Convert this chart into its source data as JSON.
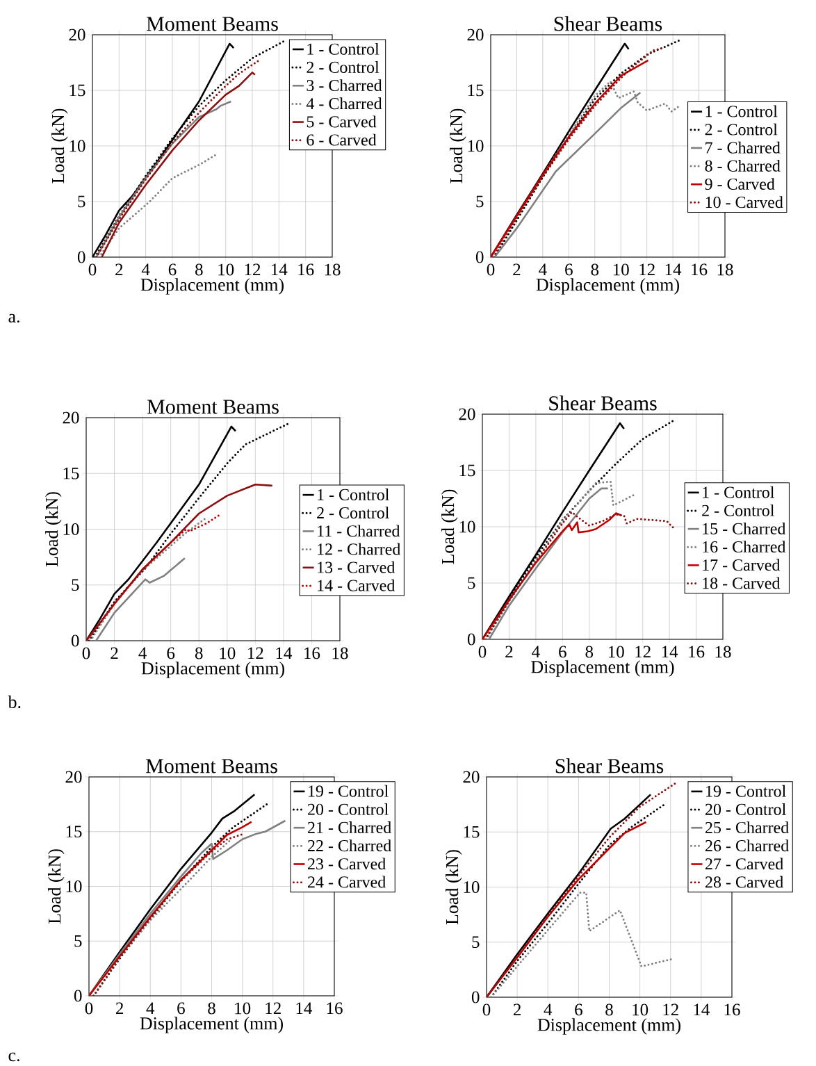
{
  "chart_data": [
    {
      "type": "line",
      "title": "Moment Beams",
      "xlabel": "Displacement (mm)",
      "ylabel": "Load (kN)",
      "xlim": [
        0,
        18
      ],
      "ylim": [
        0,
        20
      ],
      "xticks": [
        0,
        2,
        4,
        6,
        8,
        10,
        12,
        14,
        16,
        18
      ],
      "yticks": [
        0,
        5,
        10,
        15,
        20
      ],
      "grid": true,
      "legend": "top right",
      "annotations": [
        "a."
      ],
      "series": [
        {
          "name": "1 - Control",
          "color": "#000000",
          "line_style": "solid",
          "x": [
            0,
            1,
            2,
            3,
            5,
            8,
            10.3,
            10.6
          ],
          "values": [
            0,
            2,
            4.2,
            5.5,
            8.8,
            14,
            19.2,
            18.8
          ]
        },
        {
          "name": "2 - Control",
          "color": "#000000",
          "line_style": "dotted",
          "x": [
            0.2,
            2,
            4,
            6,
            8,
            10,
            12,
            14.5
          ],
          "values": [
            0,
            3.7,
            7.3,
            10.7,
            13.6,
            15.9,
            17.9,
            19.5
          ]
        },
        {
          "name": "3 - Charred",
          "color": "#808080",
          "line_style": "solid",
          "x": [
            0.3,
            2,
            4,
            6,
            8,
            9.3,
            9.6,
            10.4
          ],
          "values": [
            0,
            3.6,
            7.1,
            10.2,
            12.6,
            13.3,
            13.6,
            14
          ]
        },
        {
          "name": "4 - Charred",
          "color": "#808080",
          "line_style": "dotted",
          "x": [
            0.5,
            2,
            4.3,
            6,
            8,
            9.4
          ],
          "values": [
            0,
            2.6,
            5,
            7.1,
            8.3,
            9.3
          ]
        },
        {
          "name": "5 - Carved",
          "color": "#8b1010",
          "line_style": "solid",
          "x": [
            0.7,
            2,
            4,
            6,
            8,
            10,
            11,
            12,
            12.2
          ],
          "values": [
            0,
            3.1,
            6.5,
            9.6,
            12.3,
            14.6,
            15.4,
            16.6,
            16.4
          ]
        },
        {
          "name": "6 - Carved",
          "color": "#8b1010",
          "line_style": "dotted",
          "x": [
            0.3,
            2,
            4,
            6,
            8,
            10,
            11,
            12.5
          ],
          "values": [
            0,
            3.4,
            7,
            10.3,
            13,
            15.4,
            16.5,
            17.7
          ]
        }
      ]
    },
    {
      "type": "line",
      "title": "Shear Beams",
      "xlabel": "Displacement (mm)",
      "ylabel": "Load (kN)",
      "xlim": [
        0,
        18
      ],
      "ylim": [
        0,
        20
      ],
      "xticks": [
        0,
        2,
        4,
        6,
        8,
        10,
        12,
        14,
        16,
        18
      ],
      "yticks": [
        0,
        5,
        10,
        15,
        20
      ],
      "grid": true,
      "legend": "right",
      "series": [
        {
          "name": "1 - Control",
          "color": "#000000",
          "line_style": "solid",
          "x": [
            0,
            2,
            4,
            6,
            8,
            10.3,
            10.6
          ],
          "values": [
            0,
            3.8,
            7.5,
            11.3,
            15,
            19.2,
            18.7
          ]
        },
        {
          "name": "2 - Control",
          "color": "#000000",
          "line_style": "dotted",
          "x": [
            0.3,
            2,
            4,
            6,
            8,
            10,
            12,
            14.5
          ],
          "values": [
            0,
            3.3,
            7.2,
            10.8,
            14.2,
            16.5,
            18.2,
            19.5
          ]
        },
        {
          "name": "7 - Charred",
          "color": "#808080",
          "line_style": "solid",
          "x": [
            0.3,
            2,
            5,
            8,
            10,
            11.5
          ],
          "values": [
            0,
            2.6,
            7.7,
            11.1,
            13.4,
            14.8
          ]
        },
        {
          "name": "8 - Charred",
          "color": "#808080",
          "line_style": "dotted",
          "x": [
            0,
            2,
            4,
            6,
            8,
            9.2,
            9.8,
            11,
            11.3,
            12,
            13.4,
            13.9,
            14.5
          ],
          "values": [
            0,
            3.7,
            7.4,
            11,
            14.5,
            15.8,
            14.3,
            14.9,
            13.9,
            13.2,
            13.8,
            13.1,
            13.6
          ]
        },
        {
          "name": "9 - Carved",
          "color": "#c00000",
          "line_style": "solid",
          "x": [
            0,
            2,
            4,
            6,
            8,
            10,
            12.1
          ],
          "values": [
            0,
            3.7,
            7.4,
            10.8,
            13.8,
            16.3,
            17.7
          ]
        },
        {
          "name": "10 - Carved",
          "color": "#8b1010",
          "line_style": "dotted",
          "x": [
            0.2,
            2,
            4,
            6,
            8,
            10,
            11,
            12.5,
            13.2
          ],
          "values": [
            0,
            3.5,
            7.2,
            10.6,
            13.6,
            16.1,
            17.2,
            18.6,
            18.8
          ]
        }
      ]
    },
    {
      "type": "line",
      "title": "Moment Beams",
      "xlabel": "Displacement (mm)",
      "ylabel": "Load (kN)",
      "xlim": [
        0,
        18
      ],
      "ylim": [
        0,
        20
      ],
      "xticks": [
        0,
        2,
        4,
        6,
        8,
        10,
        12,
        14,
        16,
        18
      ],
      "yticks": [
        0,
        5,
        10,
        15,
        20
      ],
      "grid": true,
      "legend": "right",
      "annotations": [
        "b."
      ],
      "series": [
        {
          "name": "1 - Control",
          "color": "#000000",
          "line_style": "solid",
          "x": [
            0,
            1,
            2,
            3,
            5,
            8,
            10.3,
            10.6
          ],
          "values": [
            0,
            2,
            4.2,
            5.5,
            8.8,
            14,
            19.2,
            18.8
          ]
        },
        {
          "name": "2 - Control",
          "color": "#000000",
          "line_style": "dotted",
          "x": [
            0.2,
            2,
            4.2,
            6,
            8,
            10,
            11.3,
            14.4
          ],
          "values": [
            0,
            3.5,
            6.5,
            9.6,
            12.8,
            15.9,
            17.6,
            19.5
          ]
        },
        {
          "name": "11 - Charred",
          "color": "#808080",
          "line_style": "solid",
          "x": [
            0.7,
            2,
            4.2,
            4.5,
            5.5,
            7
          ],
          "values": [
            0,
            2.5,
            5.5,
            5.2,
            5.8,
            7.4
          ]
        },
        {
          "name": "12 - Charred",
          "color": "#808080",
          "line_style": "dotted",
          "x": [
            0.3,
            2,
            4,
            6,
            7,
            8.6
          ],
          "values": [
            0,
            3.3,
            6.3,
            8.5,
            9.6,
            11.1
          ]
        },
        {
          "name": "13 - Carved",
          "color": "#8b1010",
          "line_style": "solid",
          "x": [
            0,
            2,
            4,
            6,
            8,
            10,
            12,
            13.2
          ],
          "values": [
            0,
            3.3,
            6.4,
            8.8,
            11.4,
            13,
            14,
            13.9
          ]
        },
        {
          "name": "14 - Carved",
          "color": "#c00000",
          "line_style": "dotted",
          "x": [
            0,
            2,
            4,
            6,
            7.1,
            7.3,
            8.5,
            9.5
          ],
          "values": [
            0,
            3.3,
            6.4,
            8.8,
            10,
            9.8,
            10.5,
            11.3
          ]
        }
      ]
    },
    {
      "type": "line",
      "title": "Shear Beams",
      "xlabel": "Displacement (mm)",
      "ylabel": "Load (kN)",
      "xlim": [
        0,
        18
      ],
      "ylim": [
        0,
        20
      ],
      "xticks": [
        0,
        2,
        4,
        6,
        8,
        10,
        12,
        14,
        16,
        18
      ],
      "yticks": [
        0,
        5,
        10,
        15,
        20
      ],
      "grid": true,
      "legend": "right",
      "series": [
        {
          "name": "1 - Control",
          "color": "#000000",
          "line_style": "solid",
          "x": [
            0,
            2,
            4,
            6,
            8,
            10.3,
            10.6
          ],
          "values": [
            0,
            3.8,
            7.5,
            11.3,
            15,
            19.2,
            18.7
          ]
        },
        {
          "name": "2 - Control",
          "color": "#000000",
          "line_style": "dotted",
          "x": [
            0.3,
            2,
            4,
            6,
            8,
            10,
            12,
            14.4
          ],
          "values": [
            0,
            3.6,
            7.3,
            10.6,
            13.2,
            15.6,
            17.8,
            19.5
          ]
        },
        {
          "name": "15 - Charred",
          "color": "#808080",
          "line_style": "solid",
          "x": [
            0.5,
            2,
            4,
            6,
            8,
            8.9,
            9.4
          ],
          "values": [
            0,
            3,
            6.3,
            9.5,
            12.5,
            13.4,
            13.4
          ]
        },
        {
          "name": "16 - Charred",
          "color": "#808080",
          "line_style": "dotted",
          "x": [
            0.3,
            2,
            4,
            6,
            8.5,
            9.6,
            9.8,
            11.3
          ],
          "values": [
            0,
            3.4,
            7,
            10.5,
            13.9,
            14,
            11.9,
            12.8
          ]
        },
        {
          "name": "17 - Carved",
          "color": "#c00000",
          "line_style": "solid",
          "x": [
            0,
            2,
            4,
            6,
            6.5,
            6.7,
            7.1,
            7.2,
            7.9,
            8.5,
            9.5,
            10,
            10.4
          ],
          "values": [
            0,
            3.5,
            6.8,
            9.6,
            10.2,
            9.7,
            10.4,
            9.5,
            9.6,
            9.8,
            10.6,
            11.2,
            11
          ]
        },
        {
          "name": "18 - Carved",
          "color": "#8b1010",
          "line_style": "dotted",
          "x": [
            0.2,
            2,
            4,
            6,
            6.7,
            7.1,
            8,
            9,
            10,
            10.6,
            10.8,
            11.6,
            13.8,
            14.3
          ],
          "values": [
            0,
            3.4,
            6.9,
            10.3,
            11.3,
            10.9,
            10.1,
            10.5,
            11.1,
            11,
            10.3,
            10.7,
            10.5,
            9.9
          ]
        }
      ]
    },
    {
      "type": "line",
      "title": "Moment Beams",
      "xlabel": "Displacement (mm)",
      "ylabel": "Load (kN)",
      "xlim": [
        0,
        16
      ],
      "ylim": [
        0,
        20
      ],
      "xticks": [
        0,
        2,
        4,
        6,
        8,
        10,
        12,
        14,
        16
      ],
      "yticks": [
        0,
        5,
        10,
        15,
        20
      ],
      "grid": true,
      "legend": "top right",
      "annotations": [
        "c."
      ],
      "series": [
        {
          "name": "19 - Control",
          "color": "#000000",
          "line_style": "solid",
          "x": [
            0,
            2,
            4,
            6,
            8,
            8.7,
            9.5,
            10.8
          ],
          "values": [
            0,
            4,
            7.9,
            11.6,
            14.9,
            16.2,
            16.9,
            18.4
          ]
        },
        {
          "name": "20 - Control",
          "color": "#000000",
          "line_style": "dotted",
          "x": [
            0.3,
            2,
            4,
            6,
            8,
            9.4,
            11.7
          ],
          "values": [
            0,
            3.4,
            7,
            10.5,
            13.6,
            15.4,
            17.6
          ]
        },
        {
          "name": "21 - Charred",
          "color": "#808080",
          "line_style": "solid",
          "x": [
            0,
            2,
            4,
            6,
            7.3,
            8,
            8.1,
            9,
            10,
            10.9,
            11.5,
            12.8
          ],
          "values": [
            0,
            3.8,
            7.5,
            10.9,
            13,
            13.9,
            12.5,
            13.3,
            14.3,
            14.8,
            15,
            16
          ]
        },
        {
          "name": "22 - Charred",
          "color": "#808080",
          "line_style": "dotted",
          "x": [
            0.3,
            2,
            4,
            6.3,
            8,
            9.2
          ],
          "values": [
            0,
            3.5,
            6.9,
            10.2,
            12.7,
            14.2
          ]
        },
        {
          "name": "23 - Carved",
          "color": "#c00000",
          "line_style": "solid",
          "x": [
            0,
            2,
            4,
            6,
            8,
            9,
            10,
            10.6
          ],
          "values": [
            0,
            3.6,
            7.2,
            10.6,
            13.3,
            14.7,
            15.4,
            15.9
          ]
        },
        {
          "name": "24 - Carved",
          "color": "#8b1010",
          "line_style": "dotted",
          "x": [
            0.3,
            2,
            4,
            6,
            8,
            9,
            10.1
          ],
          "values": [
            0,
            3.5,
            7.1,
            10.5,
            13.2,
            14.3,
            14.8
          ]
        }
      ]
    },
    {
      "type": "line",
      "title": "Shear Beams",
      "xlabel": "Displacement (mm)",
      "ylabel": "Load (kN)",
      "xlim": [
        0,
        16
      ],
      "ylim": [
        0,
        20
      ],
      "xticks": [
        0,
        2,
        4,
        6,
        8,
        10,
        12,
        14,
        16
      ],
      "yticks": [
        0,
        5,
        10,
        15,
        20
      ],
      "grid": true,
      "legend": "top right",
      "series": [
        {
          "name": "19 - Control",
          "color": "#000000",
          "line_style": "solid",
          "x": [
            0,
            2,
            4,
            6,
            8.1,
            9,
            10.7
          ],
          "values": [
            0,
            3.9,
            7.6,
            11.2,
            15.3,
            16.2,
            18.4
          ]
        },
        {
          "name": "20 - Control",
          "color": "#000000",
          "line_style": "dotted",
          "x": [
            0.3,
            2,
            4,
            6,
            8,
            9.5,
            11.6
          ],
          "values": [
            0,
            3.3,
            6.7,
            10.3,
            13.8,
            15.5,
            17.5
          ]
        },
        {
          "name": "25 - Charred",
          "color": "#808080",
          "line_style": "solid"
        },
        {
          "name": "26 - Charred",
          "color": "#808080",
          "line_style": "dotted",
          "x": [
            0.3,
            2,
            4,
            6.1,
            6.5,
            6.7,
            8.7,
            10.1,
            12.2
          ],
          "values": [
            0,
            2.8,
            6.1,
            9.5,
            9.5,
            6,
            7.9,
            2.8,
            3.5
          ]
        },
        {
          "name": "27 - Carved",
          "color": "#c00000",
          "line_style": "solid",
          "x": [
            0,
            2,
            4,
            6,
            8,
            9,
            10.4
          ],
          "values": [
            0,
            3.6,
            7.3,
            10.7,
            13.5,
            14.9,
            15.9
          ]
        },
        {
          "name": "28 - Carved",
          "color": "#8b1010",
          "line_style": "dotted",
          "x": [
            0,
            2,
            4,
            6,
            8,
            10,
            12.4
          ],
          "values": [
            0,
            3.7,
            7.4,
            11,
            14.5,
            17.3,
            19.5
          ]
        }
      ]
    }
  ]
}
